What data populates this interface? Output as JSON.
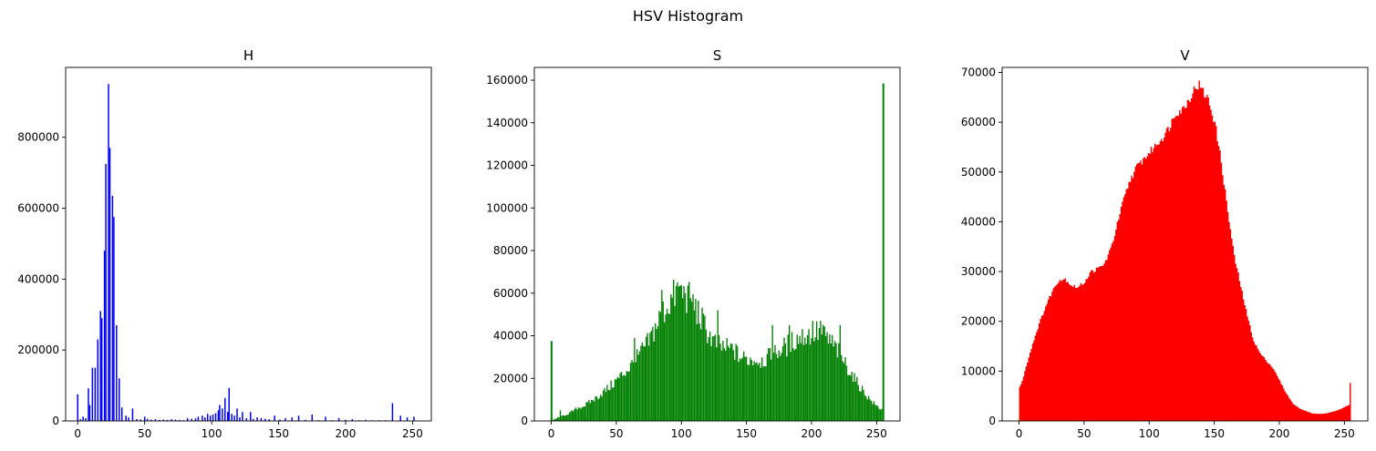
{
  "figure": {
    "suptitle": "HSV Histogram"
  },
  "chart_data": [
    {
      "type": "bar",
      "title": "H",
      "color": "#0000ff",
      "xlim": [
        -9,
        264
      ],
      "ylim": [
        0,
        997000
      ],
      "xticks": [
        0,
        50,
        100,
        150,
        200,
        250
      ],
      "yticks": [
        0,
        200000,
        400000,
        600000,
        800000
      ],
      "bars": [
        {
          "x": 0,
          "y": 75000
        },
        {
          "x": 2,
          "y": 5000
        },
        {
          "x": 4,
          "y": 12000
        },
        {
          "x": 6,
          "y": 8000
        },
        {
          "x": 8,
          "y": 92000
        },
        {
          "x": 9,
          "y": 45000
        },
        {
          "x": 11,
          "y": 150000
        },
        {
          "x": 13,
          "y": 150000
        },
        {
          "x": 15,
          "y": 230000
        },
        {
          "x": 17,
          "y": 310000
        },
        {
          "x": 18,
          "y": 290000
        },
        {
          "x": 20,
          "y": 480000
        },
        {
          "x": 21,
          "y": 725000
        },
        {
          "x": 23,
          "y": 950000
        },
        {
          "x": 24,
          "y": 770000
        },
        {
          "x": 26,
          "y": 635000
        },
        {
          "x": 27,
          "y": 575000
        },
        {
          "x": 29,
          "y": 270000
        },
        {
          "x": 31,
          "y": 120000
        },
        {
          "x": 33,
          "y": 38000
        },
        {
          "x": 36,
          "y": 15000
        },
        {
          "x": 38,
          "y": 10000
        },
        {
          "x": 41,
          "y": 35000
        },
        {
          "x": 44,
          "y": 5000
        },
        {
          "x": 47,
          "y": 4000
        },
        {
          "x": 50,
          "y": 12000
        },
        {
          "x": 52,
          "y": 6000
        },
        {
          "x": 55,
          "y": 4000
        },
        {
          "x": 58,
          "y": 5000
        },
        {
          "x": 61,
          "y": 3000
        },
        {
          "x": 64,
          "y": 4000
        },
        {
          "x": 67,
          "y": 3000
        },
        {
          "x": 70,
          "y": 5000
        },
        {
          "x": 73,
          "y": 4000
        },
        {
          "x": 76,
          "y": 3000
        },
        {
          "x": 79,
          "y": 2000
        },
        {
          "x": 82,
          "y": 8000
        },
        {
          "x": 85,
          "y": 6000
        },
        {
          "x": 88,
          "y": 7000
        },
        {
          "x": 90,
          "y": 12000
        },
        {
          "x": 93,
          "y": 15000
        },
        {
          "x": 95,
          "y": 10000
        },
        {
          "x": 97,
          "y": 20000
        },
        {
          "x": 99,
          "y": 15000
        },
        {
          "x": 101,
          "y": 18000
        },
        {
          "x": 103,
          "y": 22000
        },
        {
          "x": 105,
          "y": 30000
        },
        {
          "x": 106,
          "y": 45000
        },
        {
          "x": 108,
          "y": 35000
        },
        {
          "x": 110,
          "y": 65000
        },
        {
          "x": 112,
          "y": 25000
        },
        {
          "x": 113,
          "y": 93000
        },
        {
          "x": 115,
          "y": 20000
        },
        {
          "x": 117,
          "y": 15000
        },
        {
          "x": 119,
          "y": 35000
        },
        {
          "x": 121,
          "y": 10000
        },
        {
          "x": 123,
          "y": 25000
        },
        {
          "x": 126,
          "y": 8000
        },
        {
          "x": 129,
          "y": 25000
        },
        {
          "x": 131,
          "y": 6000
        },
        {
          "x": 134,
          "y": 10000
        },
        {
          "x": 137,
          "y": 8000
        },
        {
          "x": 140,
          "y": 6000
        },
        {
          "x": 143,
          "y": 5000
        },
        {
          "x": 147,
          "y": 15000
        },
        {
          "x": 151,
          "y": 4000
        },
        {
          "x": 155,
          "y": 8000
        },
        {
          "x": 160,
          "y": 10000
        },
        {
          "x": 165,
          "y": 15000
        },
        {
          "x": 170,
          "y": 3000
        },
        {
          "x": 175,
          "y": 18000
        },
        {
          "x": 180,
          "y": 2000
        },
        {
          "x": 185,
          "y": 12000
        },
        {
          "x": 190,
          "y": 2000
        },
        {
          "x": 195,
          "y": 8000
        },
        {
          "x": 200,
          "y": 3000
        },
        {
          "x": 205,
          "y": 5000
        },
        {
          "x": 210,
          "y": 2000
        },
        {
          "x": 215,
          "y": 3000
        },
        {
          "x": 220,
          "y": 2000
        },
        {
          "x": 225,
          "y": 2000
        },
        {
          "x": 230,
          "y": 2000
        },
        {
          "x": 235,
          "y": 50000
        },
        {
          "x": 241,
          "y": 15000
        },
        {
          "x": 246,
          "y": 10000
        },
        {
          "x": 251,
          "y": 12000
        }
      ]
    },
    {
      "type": "bar",
      "title": "S",
      "color": "#008000",
      "xlim": [
        -13,
        268
      ],
      "ylim": [
        0,
        166000
      ],
      "xticks": [
        0,
        50,
        100,
        150,
        200,
        250
      ],
      "yticks": [
        0,
        20000,
        40000,
        60000,
        80000,
        100000,
        120000,
        140000,
        160000
      ],
      "profile": [
        [
          0,
          0
        ],
        [
          5,
          1500
        ],
        [
          10,
          2500
        ],
        [
          15,
          4000
        ],
        [
          20,
          6000
        ],
        [
          25,
          7000
        ],
        [
          30,
          9000
        ],
        [
          35,
          11000
        ],
        [
          40,
          13500
        ],
        [
          45,
          16000
        ],
        [
          50,
          19000
        ],
        [
          55,
          22000
        ],
        [
          60,
          25000
        ],
        [
          65,
          28500
        ],
        [
          70,
          33000
        ],
        [
          75,
          37000
        ],
        [
          80,
          44000
        ],
        [
          85,
          50000
        ],
        [
          90,
          55000
        ],
        [
          95,
          59000
        ],
        [
          100,
          60000
        ],
        [
          105,
          58000
        ],
        [
          110,
          54000
        ],
        [
          115,
          48000
        ],
        [
          120,
          42000
        ],
        [
          125,
          37000
        ],
        [
          130,
          35000
        ],
        [
          135,
          34000
        ],
        [
          140,
          33500
        ],
        [
          145,
          30000
        ],
        [
          150,
          29000
        ],
        [
          155,
          29000
        ],
        [
          160,
          28500
        ],
        [
          165,
          29000
        ],
        [
          170,
          31000
        ],
        [
          175,
          33000
        ],
        [
          180,
          35000
        ],
        [
          185,
          37000
        ],
        [
          190,
          39000
        ],
        [
          195,
          40000
        ],
        [
          200,
          41000
        ],
        [
          205,
          41500
        ],
        [
          210,
          40000
        ],
        [
          215,
          37000
        ],
        [
          220,
          33000
        ],
        [
          225,
          28000
        ],
        [
          230,
          23000
        ],
        [
          235,
          18000
        ],
        [
          240,
          14000
        ],
        [
          245,
          10000
        ],
        [
          250,
          7000
        ],
        [
          255,
          5000
        ]
      ],
      "spikes": [
        {
          "x": 0,
          "y": 37500
        },
        {
          "x": 7,
          "y": 5000
        },
        {
          "x": 64,
          "y": 39000
        },
        {
          "x": 85,
          "y": 61500
        },
        {
          "x": 97,
          "y": 65000
        },
        {
          "x": 99,
          "y": 63500
        },
        {
          "x": 103,
          "y": 60000
        },
        {
          "x": 108,
          "y": 56000
        },
        {
          "x": 128,
          "y": 52000
        },
        {
          "x": 170,
          "y": 45000
        },
        {
          "x": 183,
          "y": 45000
        },
        {
          "x": 201,
          "y": 47000
        },
        {
          "x": 207,
          "y": 47000
        },
        {
          "x": 222,
          "y": 45000
        },
        {
          "x": 255,
          "y": 158500
        }
      ]
    },
    {
      "type": "area",
      "title": "V",
      "color": "#ff0000",
      "xlim": [
        -13,
        268
      ],
      "ylim": [
        0,
        71000
      ],
      "xticks": [
        0,
        50,
        100,
        150,
        200,
        250
      ],
      "yticks": [
        0,
        10000,
        20000,
        30000,
        40000,
        50000,
        60000,
        70000
      ],
      "profile": [
        [
          0,
          6800
        ],
        [
          2,
          8000
        ],
        [
          5,
          11000
        ],
        [
          10,
          15500
        ],
        [
          15,
          19500
        ],
        [
          20,
          23000
        ],
        [
          25,
          26000
        ],
        [
          30,
          28300
        ],
        [
          35,
          28500
        ],
        [
          40,
          27200
        ],
        [
          45,
          26800
        ],
        [
          50,
          28000
        ],
        [
          55,
          30000
        ],
        [
          60,
          30500
        ],
        [
          65,
          31500
        ],
        [
          70,
          34500
        ],
        [
          75,
          39500
        ],
        [
          80,
          44500
        ],
        [
          85,
          48500
        ],
        [
          90,
          51000
        ],
        [
          95,
          52500
        ],
        [
          100,
          54000
        ],
        [
          105,
          55500
        ],
        [
          110,
          57000
        ],
        [
          115,
          59000
        ],
        [
          120,
          62000
        ],
        [
          125,
          62500
        ],
        [
          130,
          64500
        ],
        [
          135,
          67000
        ],
        [
          138,
          67500
        ],
        [
          140,
          66500
        ],
        [
          145,
          64500
        ],
        [
          150,
          60000
        ],
        [
          155,
          52000
        ],
        [
          160,
          42000
        ],
        [
          165,
          33000
        ],
        [
          170,
          27000
        ],
        [
          175,
          21000
        ],
        [
          180,
          16000
        ],
        [
          185,
          13500
        ],
        [
          190,
          12000
        ],
        [
          195,
          10500
        ],
        [
          200,
          8000
        ],
        [
          205,
          5500
        ],
        [
          210,
          3500
        ],
        [
          215,
          2500
        ],
        [
          220,
          2000
        ],
        [
          225,
          1500
        ],
        [
          230,
          1400
        ],
        [
          235,
          1500
        ],
        [
          240,
          1800
        ],
        [
          245,
          2200
        ],
        [
          250,
          2800
        ],
        [
          253,
          3200
        ],
        [
          254,
          7500
        ]
      ]
    }
  ]
}
